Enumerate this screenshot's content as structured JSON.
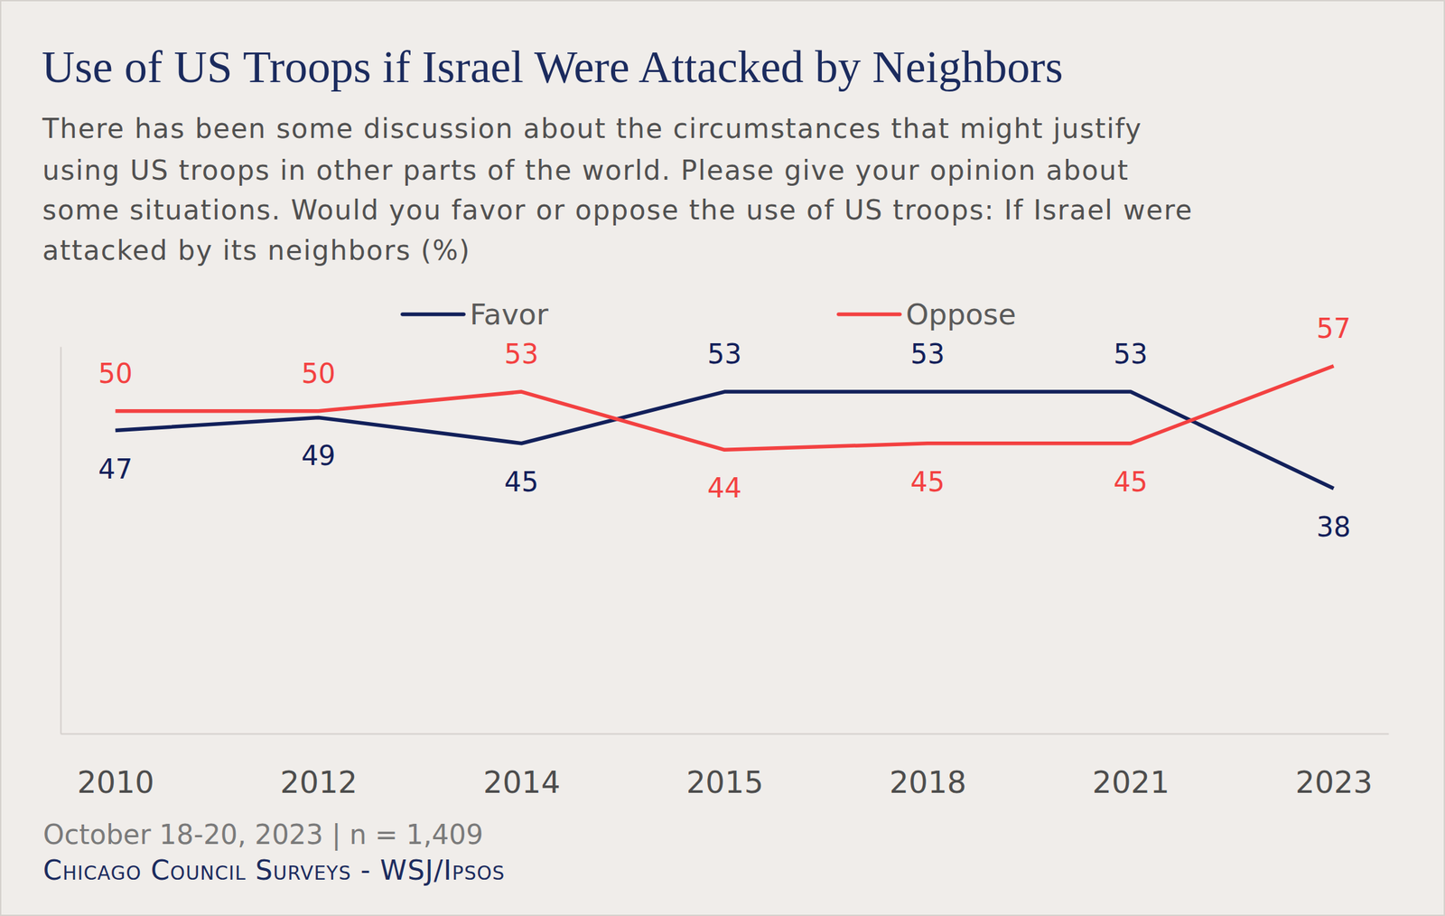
{
  "chart_data": {
    "type": "line",
    "title": "Use of US Troops if Israel Were Attacked by Neighbors",
    "subtitle": [
      "There has been some discussion about the circumstances that might justify",
      "using US troops in other parts of the world. Please give your opinion about",
      "some situations. Would you favor or oppose the use of US troops: If Israel were",
      "attacked by its neighbors (%)"
    ],
    "categories": [
      "2010",
      "2012",
      "2014",
      "2015",
      "2018",
      "2021",
      "2023"
    ],
    "series": [
      {
        "name": "Favor",
        "color": "#12205a",
        "values": [
          47,
          49,
          45,
          53,
          53,
          53,
          38
        ]
      },
      {
        "name": "Oppose",
        "color": "#f34141",
        "values": [
          50,
          50,
          53,
          44,
          45,
          45,
          57
        ]
      }
    ],
    "ylim": [
      0,
      60
    ],
    "tick_labels": "x",
    "data_labels": true,
    "legend": "top",
    "grid": false,
    "annotations": [
      "October 18-20, 2023 | n = 1,409",
      "Chicago Council Surveys - WSJ/Ipsos"
    ]
  }
}
